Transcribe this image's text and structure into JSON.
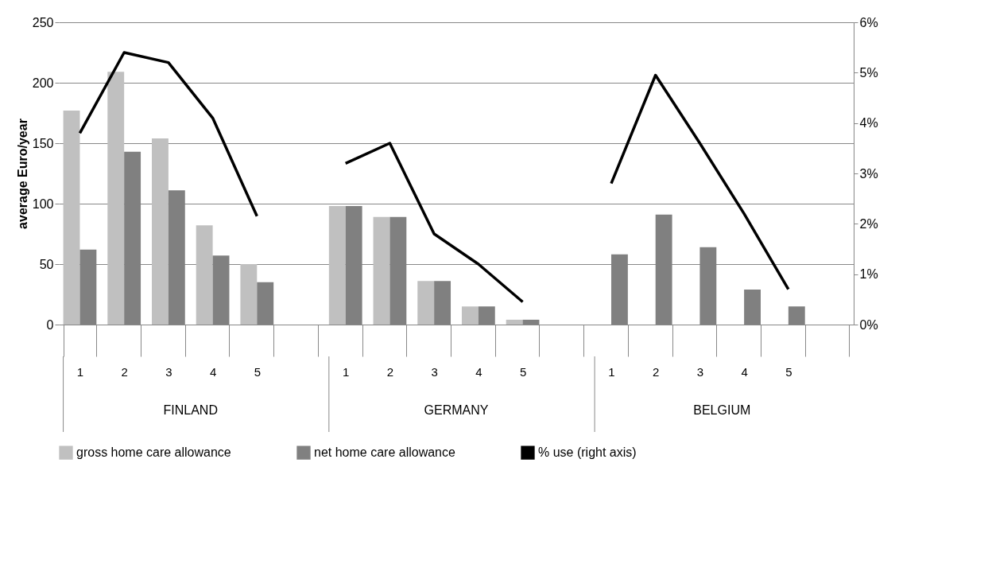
{
  "chart_data": {
    "type": "bar",
    "categories": [
      "1",
      "2",
      "3",
      "4",
      "5",
      null,
      "1",
      "2",
      "3",
      "4",
      "5",
      null,
      "1",
      "2",
      "3",
      "4",
      "5",
      null
    ],
    "series": [
      {
        "name": "gross home care allowance",
        "color": "#c0c0c0",
        "values": [
          177,
          209,
          154,
          82,
          50,
          null,
          98,
          89,
          36,
          15,
          4,
          null,
          null,
          null,
          null,
          null,
          null,
          null
        ]
      },
      {
        "name": "net home care allowance",
        "color": "#808080",
        "values": [
          62,
          143,
          111,
          57,
          35,
          null,
          98,
          89,
          36,
          15,
          4,
          null,
          58,
          91,
          64,
          29,
          15,
          null
        ]
      },
      {
        "name": "% use (right axis)",
        "type": "line",
        "axis": "y2",
        "color": "#000000",
        "values": [
          3.8,
          5.4,
          5.2,
          4.1,
          2.15,
          null,
          3.2,
          3.6,
          1.8,
          1.2,
          0.45,
          null,
          2.8,
          4.95,
          3.6,
          2.2,
          0.7,
          null
        ]
      }
    ],
    "ylabel": "average Euro/year",
    "ylim": [
      0,
      250
    ],
    "yticks": [
      0,
      50,
      100,
      150,
      200,
      250
    ],
    "y2lim": [
      0,
      6
    ],
    "y2ticks": [
      {
        "value": 0,
        "label": "0%"
      },
      {
        "value": 1,
        "label": "1%"
      },
      {
        "value": 2,
        "label": "2%"
      },
      {
        "value": 3,
        "label": "3%"
      },
      {
        "value": 4,
        "label": "4%"
      },
      {
        "value": 5,
        "label": "5%"
      },
      {
        "value": 6,
        "label": "6%"
      }
    ],
    "annotations": [
      "FINLAND",
      "GERMANY",
      "BELGIUM"
    ],
    "grid": "y",
    "legend": "bottom"
  }
}
